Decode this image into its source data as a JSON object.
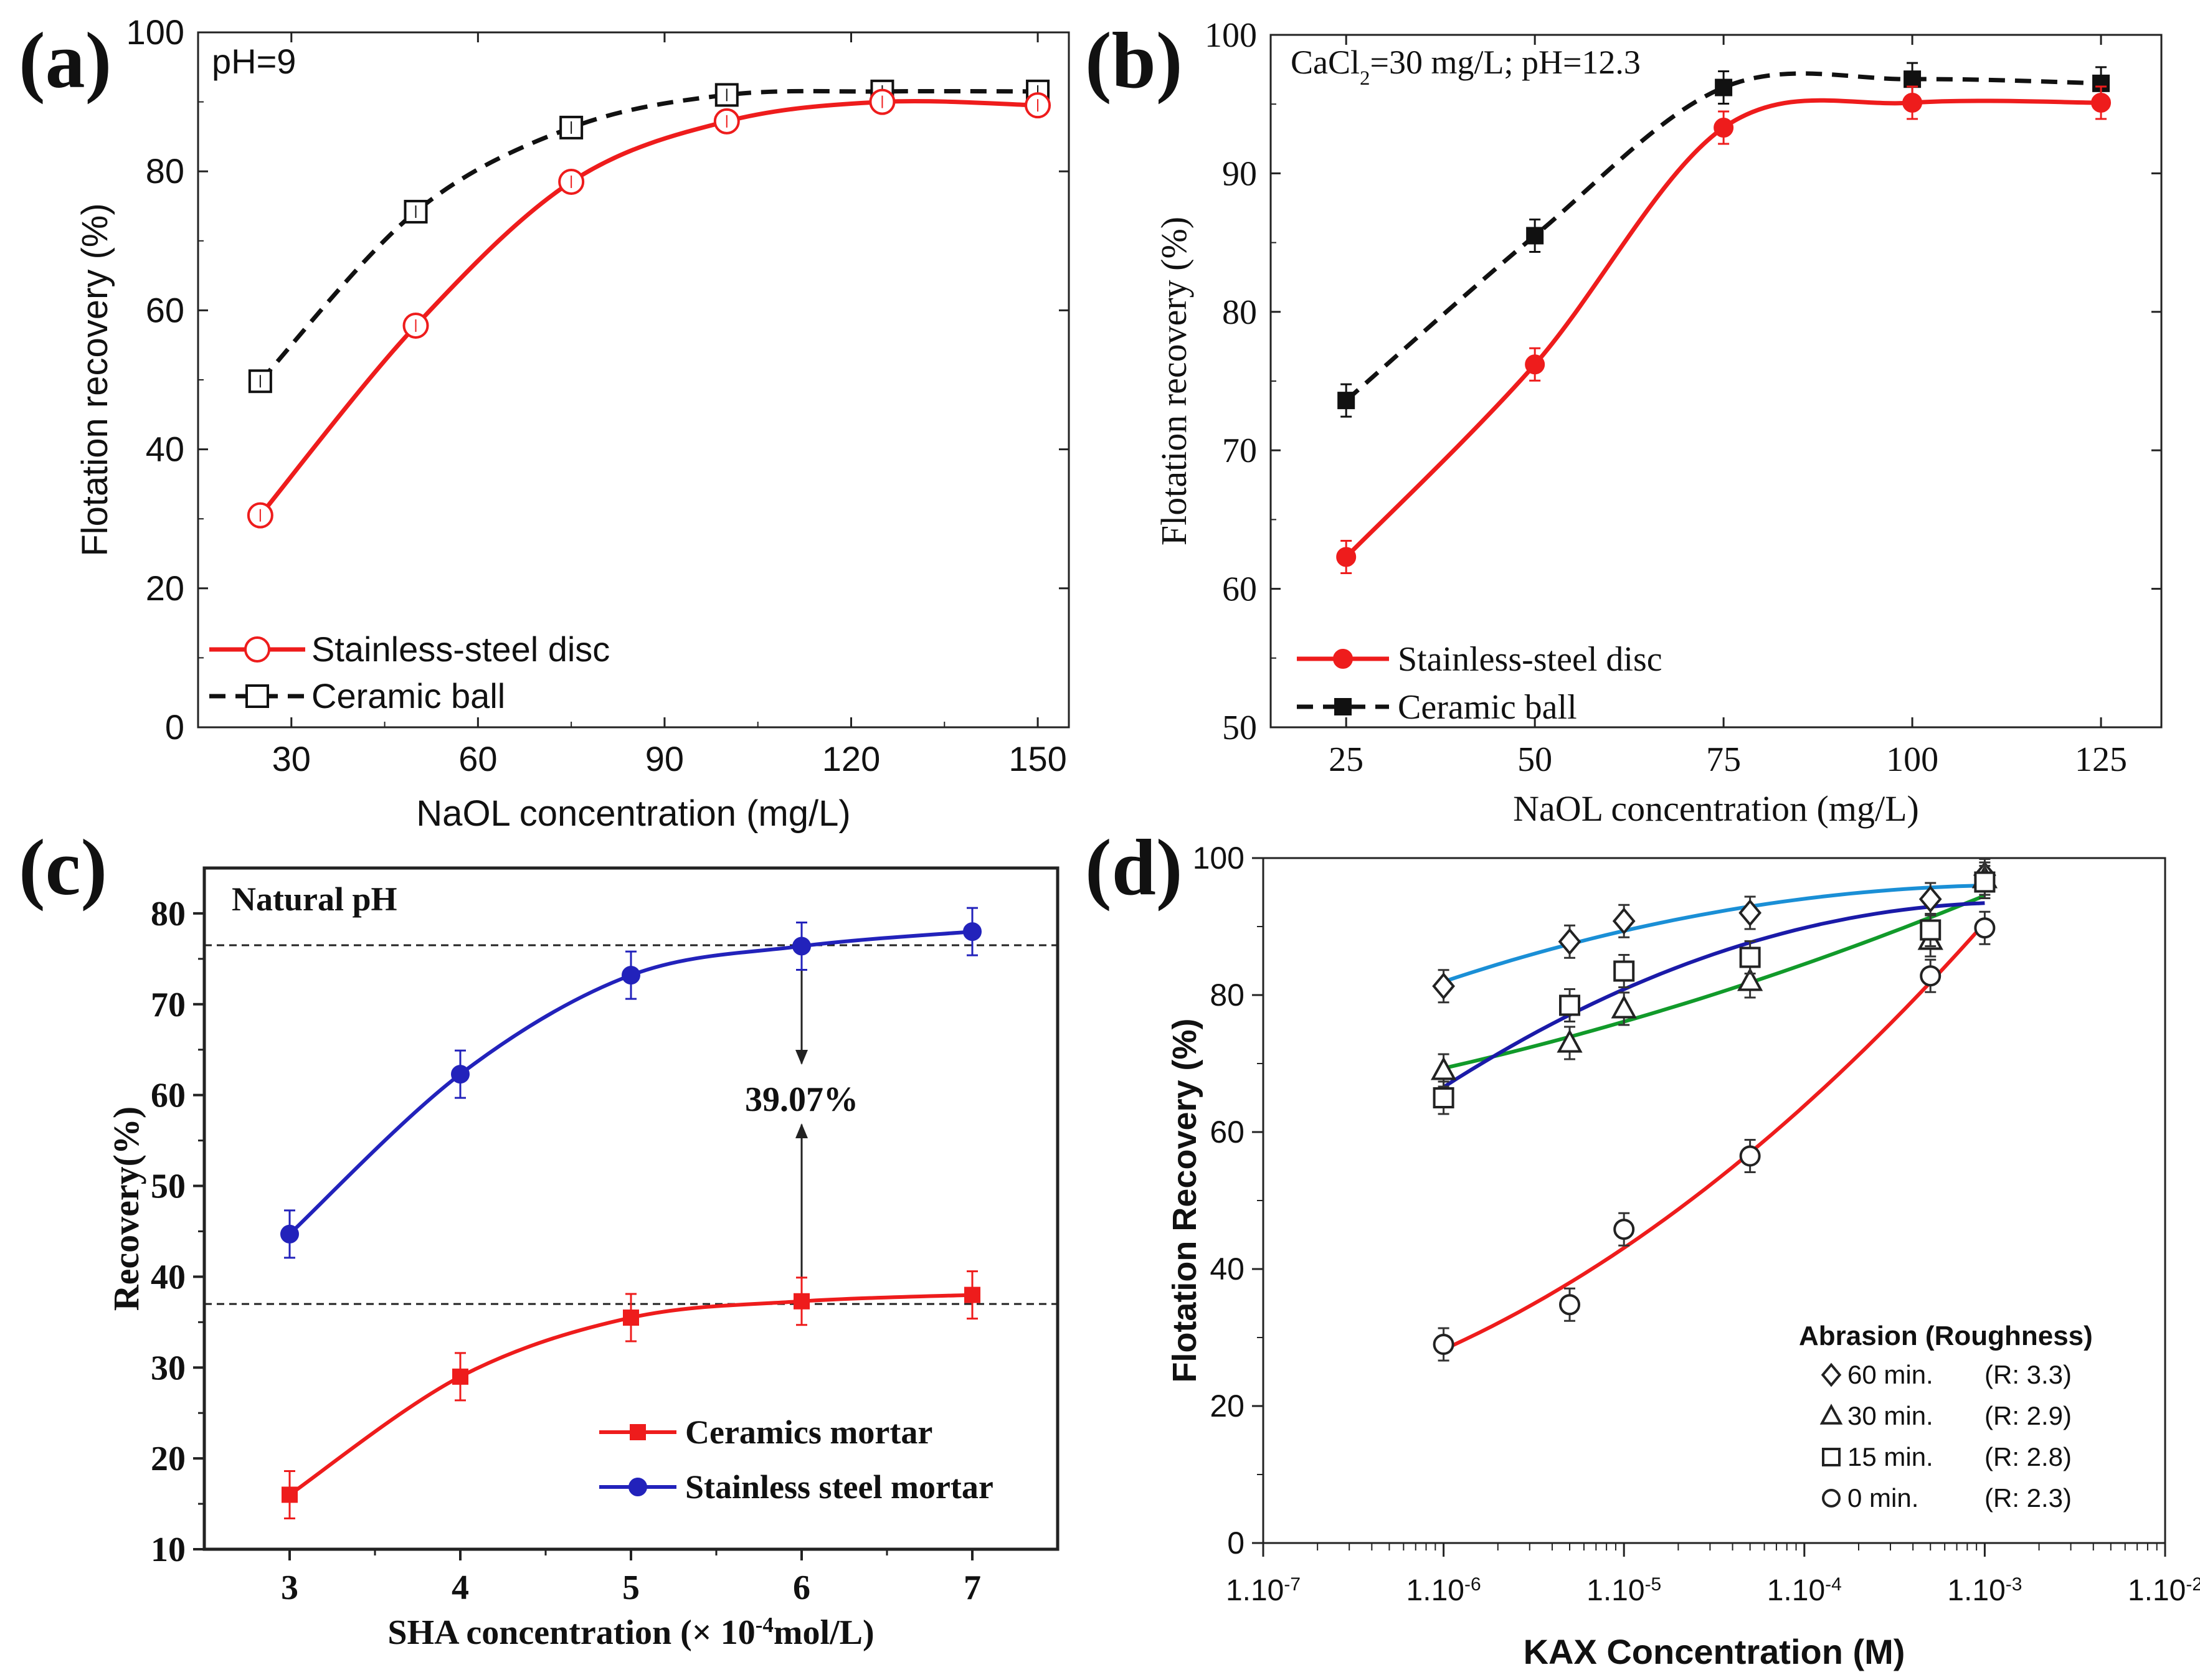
{
  "chart_data": [
    {
      "id": "a",
      "type": "line",
      "panel_label": "(a)",
      "annotation": "pH=9",
      "xlabel": "NaOL concentration (mg/L)",
      "ylabel": "Flotation recovery (%)",
      "xlim": [
        15,
        155
      ],
      "ylim": [
        0,
        100
      ],
      "xticks": [
        30,
        60,
        90,
        120,
        150
      ],
      "yticks": [
        0,
        20,
        40,
        60,
        80,
        100
      ],
      "legend_position": "bottom-left",
      "series": [
        {
          "name": "Stainless-steel disc",
          "color": "#ee1c1c",
          "line": "solid",
          "marker": "open-circle",
          "x": [
            25,
            50,
            75,
            100,
            125,
            150
          ],
          "y": [
            30.5,
            57.8,
            78.5,
            87.2,
            90.0,
            89.5
          ]
        },
        {
          "name": "Ceramic ball",
          "color": "#111111",
          "line": "dashed",
          "marker": "open-square",
          "x": [
            25,
            50,
            75,
            100,
            125,
            150
          ],
          "y": [
            49.8,
            74.2,
            86.3,
            91.0,
            91.5,
            91.5
          ]
        }
      ]
    },
    {
      "id": "b",
      "type": "line",
      "panel_label": "(b)",
      "annotation_parts": [
        "CaCl",
        "2",
        "=30 mg/L; pH=12.3"
      ],
      "xlabel": "NaOL concentration (mg/L)",
      "ylabel": "Flotation recovery (%)",
      "xlim": [
        15,
        133
      ],
      "ylim": [
        50,
        100
      ],
      "xticks": [
        25,
        50,
        75,
        100,
        125
      ],
      "yticks": [
        50,
        60,
        70,
        80,
        90,
        100
      ],
      "legend_position": "bottom-left",
      "series": [
        {
          "name": "Stainless-steel disc",
          "color": "#ee1c1c",
          "line": "solid",
          "marker": "filled-circle",
          "x": [
            25,
            50,
            75,
            100,
            125
          ],
          "y": [
            62.3,
            76.2,
            93.3,
            95.1,
            95.1
          ]
        },
        {
          "name": "Ceramic ball",
          "color": "#111111",
          "line": "dashed",
          "marker": "filled-square",
          "x": [
            25,
            50,
            75,
            100,
            125
          ],
          "y": [
            73.6,
            85.5,
            96.2,
            96.8,
            96.5
          ]
        }
      ]
    },
    {
      "id": "c",
      "type": "line",
      "panel_label": "(c)",
      "annotation": "Natural pH",
      "difference_label": "39.07%",
      "xlabel_parts": [
        "SHA concentration (× 10",
        "-4",
        "mol/L)"
      ],
      "ylabel": "Recovery(%)",
      "xlim": [
        2.5,
        7.5
      ],
      "ylim": [
        10,
        85
      ],
      "xticks": [
        3,
        4,
        5,
        6,
        7
      ],
      "yticks": [
        10,
        20,
        30,
        40,
        50,
        60,
        70,
        80
      ],
      "reference_lines_y": [
        76.5,
        37.0
      ],
      "legend_position": "bottom-right",
      "series": [
        {
          "name": "Ceramics mortar",
          "color": "#ee1c1c",
          "line": "solid",
          "marker": "filled-square",
          "x": [
            3,
            4,
            5,
            6,
            7
          ],
          "y": [
            16.0,
            29.0,
            35.5,
            37.3,
            38.0
          ]
        },
        {
          "name": "Stainless steel mortar",
          "color": "#2222bb",
          "line": "solid",
          "marker": "filled-circle",
          "x": [
            3,
            4,
            5,
            6,
            7
          ],
          "y": [
            44.7,
            62.3,
            73.2,
            76.4,
            78.0
          ]
        }
      ]
    },
    {
      "id": "d",
      "type": "scatter",
      "panel_label": "(d)",
      "xscale": "log",
      "xlabel": "KAX Concentration (M)",
      "ylabel": "Flotation Recovery (%)",
      "xlim_log10": [
        -7,
        -2
      ],
      "ylim": [
        0,
        100
      ],
      "xtick_labels": [
        "1.10",
        "1.10",
        "1.10",
        "1.10",
        "1.10",
        "1.10"
      ],
      "xtick_exponents": [
        "-7",
        "-6",
        "-5",
        "-4",
        "-3",
        "-2"
      ],
      "yticks": [
        0,
        20,
        40,
        60,
        80,
        100
      ],
      "legend_title": "Abrasion  (Roughness)",
      "legend_position": "bottom-right",
      "series": [
        {
          "name": "60 min.",
          "roughness": "(R: 3.3)",
          "marker": "diamond",
          "fit_color": "#1a8fd6",
          "log10_x": [
            -6,
            -5.301,
            -5,
            -4.301,
            -3.301,
            -3
          ],
          "y": [
            81.3,
            87.8,
            90.8,
            92.0,
            94.0,
            97.5
          ]
        },
        {
          "name": "30 min.",
          "roughness": "(R: 2.9)",
          "marker": "triangle",
          "fit_color": "#119a2a",
          "log10_x": [
            -6,
            -5.301,
            -5,
            -4.301,
            -3.301,
            -3
          ],
          "y": [
            69.0,
            73.0,
            78.0,
            82.0,
            88.0,
            97.0
          ]
        },
        {
          "name": "15 min.",
          "roughness": "(R: 2.8)",
          "marker": "square",
          "fit_color": "#1a1aa8",
          "log10_x": [
            -6,
            -5.301,
            -5,
            -4.301,
            -3.301,
            -3
          ],
          "y": [
            65.0,
            78.5,
            83.5,
            85.5,
            89.5,
            96.5
          ]
        },
        {
          "name": "0 min.",
          "roughness": "(R: 2.3)",
          "marker": "circle",
          "fit_color": "#ee1c1c",
          "log10_x": [
            -6,
            -5.301,
            -5,
            -4.301,
            -3.301,
            -3
          ],
          "y": [
            29.0,
            34.8,
            45.8,
            56.5,
            82.8,
            89.8
          ]
        }
      ]
    }
  ]
}
